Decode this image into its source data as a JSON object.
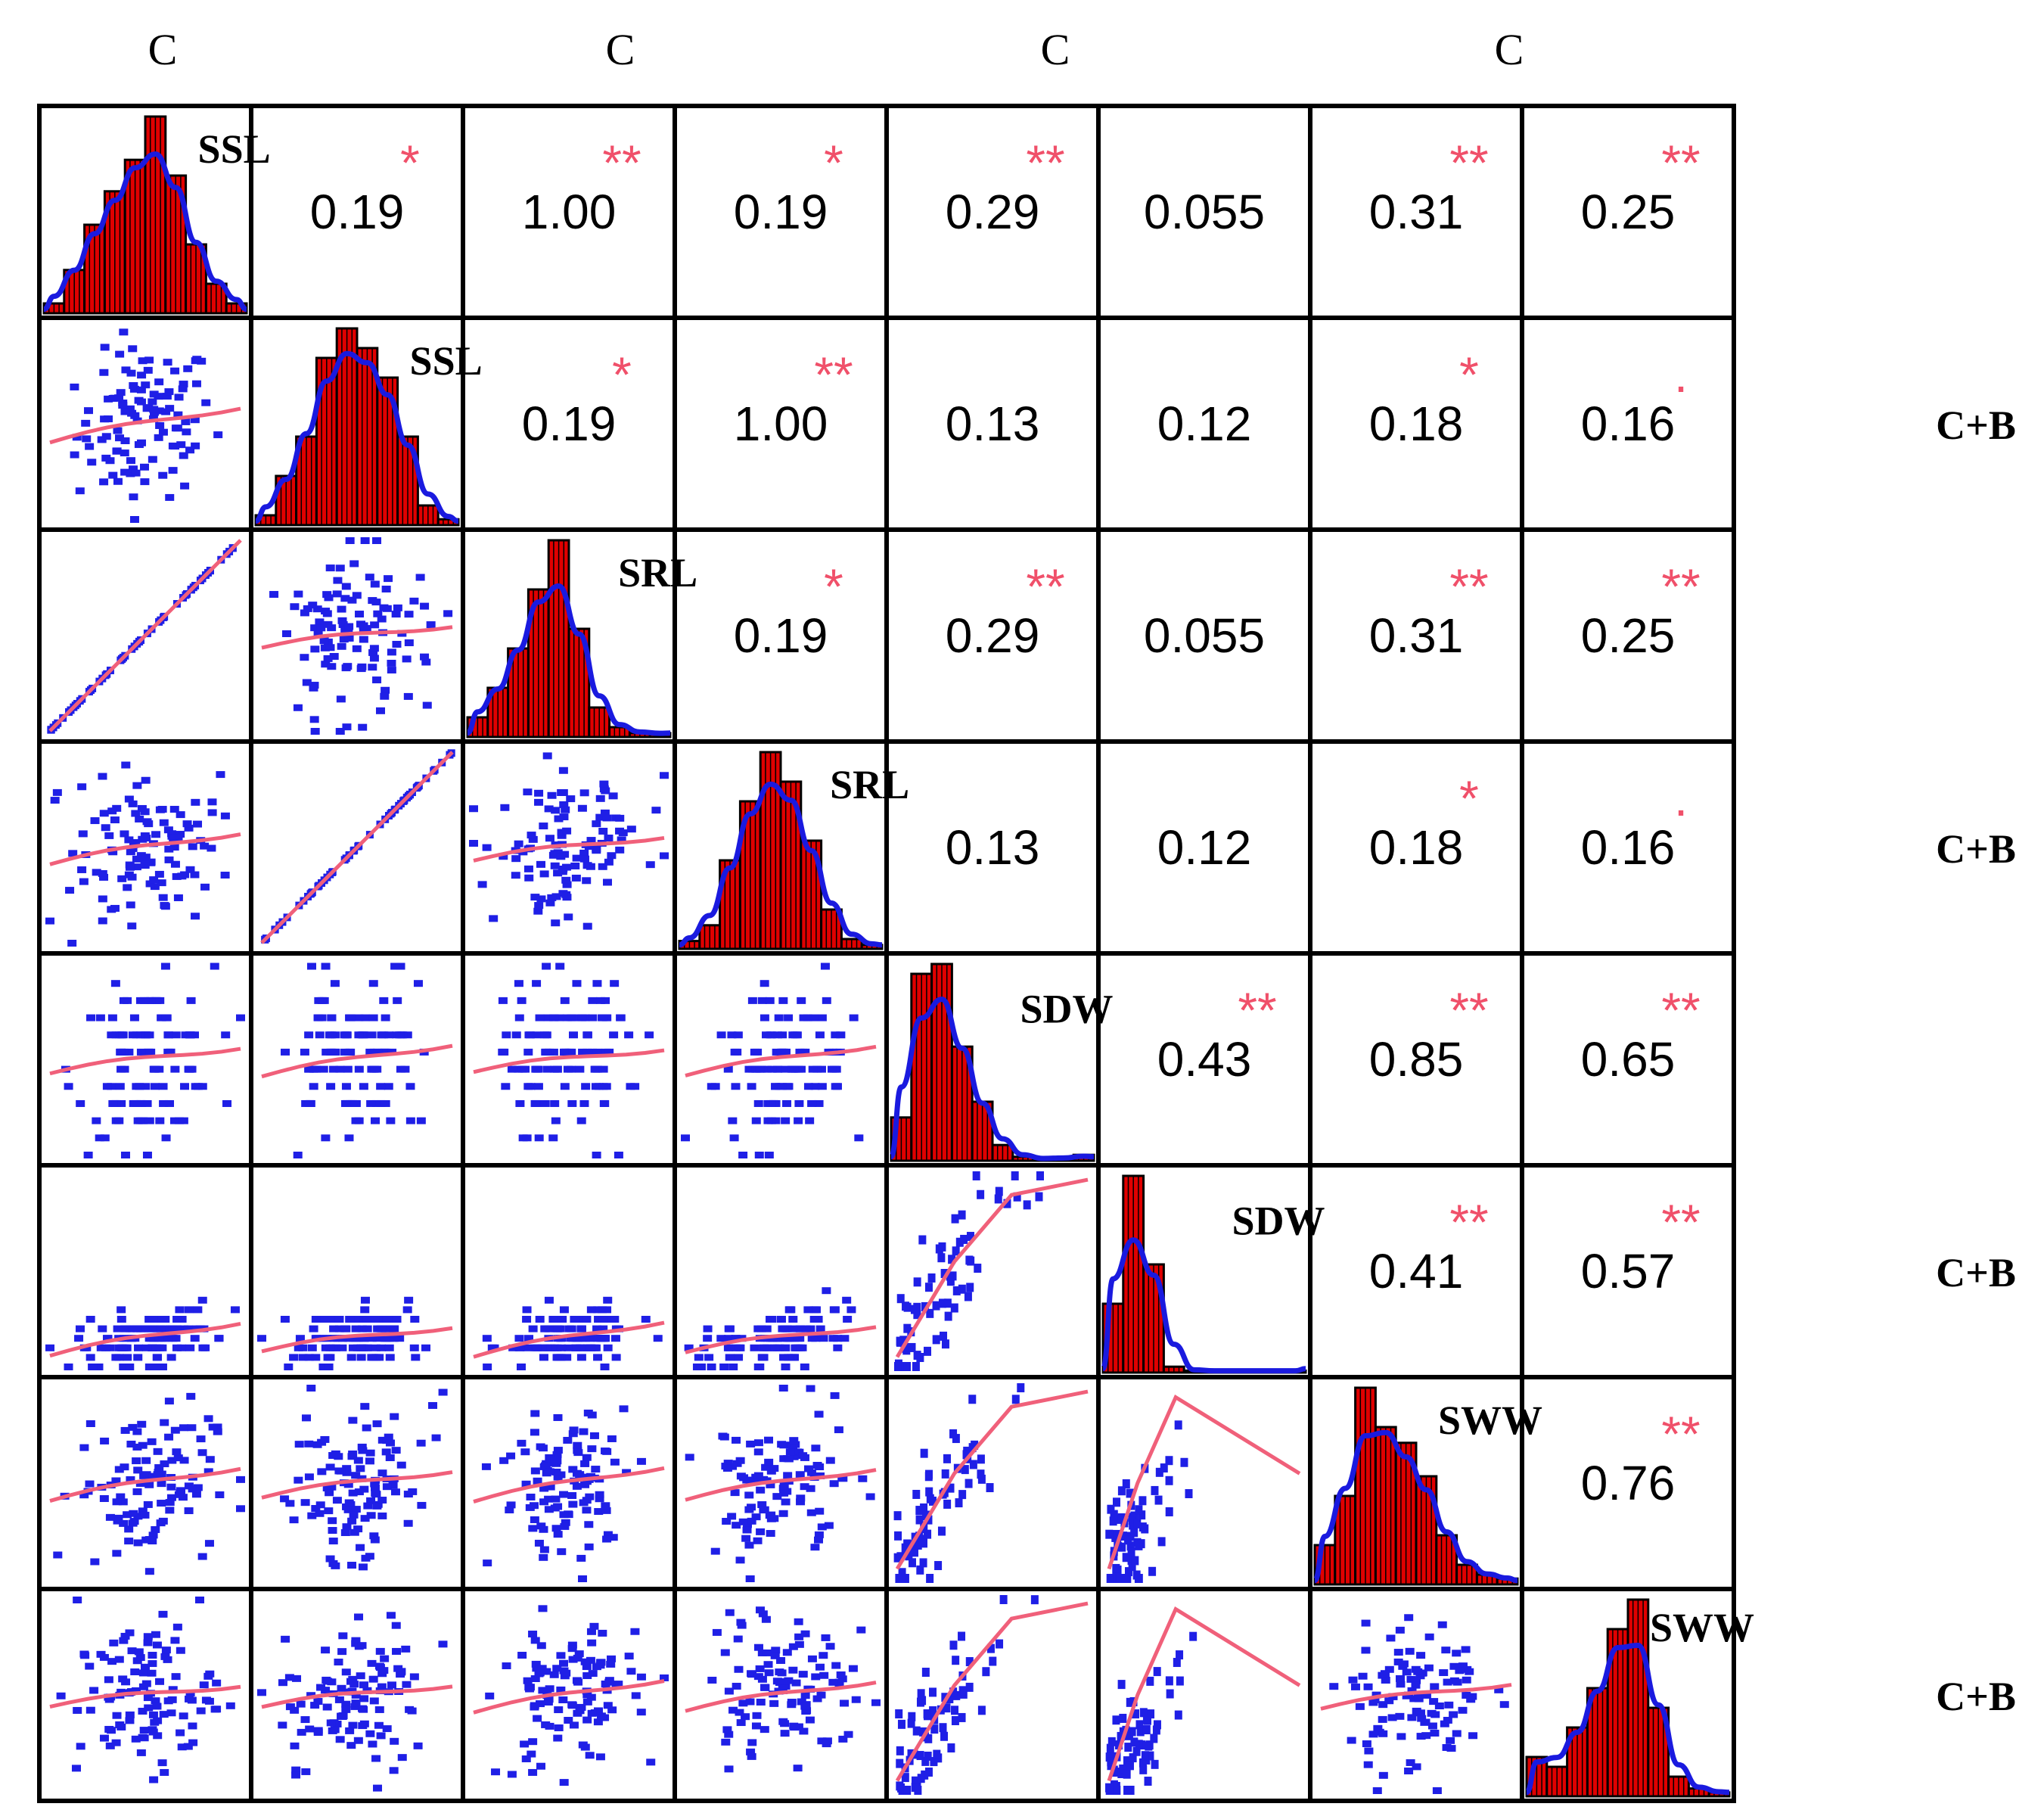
{
  "chart_data": {
    "type": "scatter-matrix",
    "title": "",
    "top_labels": [
      "C",
      "C",
      "C",
      "C"
    ],
    "right_labels": [
      "C+B",
      "C+B",
      "C+B",
      "C+B"
    ],
    "variables": [
      "SSL",
      "SSL",
      "SRL",
      "SRL",
      "SDW",
      "SDW",
      "SWW",
      "SWW"
    ],
    "groups": [
      "C",
      "C+B",
      "C",
      "C+B",
      "C",
      "C+B",
      "C",
      "C+B"
    ],
    "correlations": [
      {
        "row": 0,
        "col": 1,
        "value": "0.19",
        "stars": "*"
      },
      {
        "row": 0,
        "col": 2,
        "value": "1.00",
        "stars": "**"
      },
      {
        "row": 0,
        "col": 3,
        "value": "0.19",
        "stars": "*"
      },
      {
        "row": 0,
        "col": 4,
        "value": "0.29",
        "stars": "**"
      },
      {
        "row": 0,
        "col": 5,
        "value": "0.055",
        "stars": ""
      },
      {
        "row": 0,
        "col": 6,
        "value": "0.31",
        "stars": "**"
      },
      {
        "row": 0,
        "col": 7,
        "value": "0.25",
        "stars": "**"
      },
      {
        "row": 1,
        "col": 2,
        "value": "0.19",
        "stars": "*"
      },
      {
        "row": 1,
        "col": 3,
        "value": "1.00",
        "stars": "**"
      },
      {
        "row": 1,
        "col": 4,
        "value": "0.13",
        "stars": ""
      },
      {
        "row": 1,
        "col": 5,
        "value": "0.12",
        "stars": ""
      },
      {
        "row": 1,
        "col": 6,
        "value": "0.18",
        "stars": "*"
      },
      {
        "row": 1,
        "col": 7,
        "value": "0.16",
        "stars": "."
      },
      {
        "row": 2,
        "col": 3,
        "value": "0.19",
        "stars": "*"
      },
      {
        "row": 2,
        "col": 4,
        "value": "0.29",
        "stars": "**"
      },
      {
        "row": 2,
        "col": 5,
        "value": "0.055",
        "stars": ""
      },
      {
        "row": 2,
        "col": 6,
        "value": "0.31",
        "stars": "**"
      },
      {
        "row": 2,
        "col": 7,
        "value": "0.25",
        "stars": "**"
      },
      {
        "row": 3,
        "col": 4,
        "value": "0.13",
        "stars": ""
      },
      {
        "row": 3,
        "col": 5,
        "value": "0.12",
        "stars": ""
      },
      {
        "row": 3,
        "col": 6,
        "value": "0.18",
        "stars": "*"
      },
      {
        "row": 3,
        "col": 7,
        "value": "0.16",
        "stars": "."
      },
      {
        "row": 4,
        "col": 5,
        "value": "0.43",
        "stars": "**"
      },
      {
        "row": 4,
        "col": 6,
        "value": "0.85",
        "stars": "**"
      },
      {
        "row": 4,
        "col": 7,
        "value": "0.65",
        "stars": "**"
      },
      {
        "row": 5,
        "col": 6,
        "value": "0.41",
        "stars": "**"
      },
      {
        "row": 5,
        "col": 7,
        "value": "0.57",
        "stars": "**"
      },
      {
        "row": 6,
        "col": 7,
        "value": "0.76",
        "stars": "**"
      }
    ],
    "colors": {
      "histogram_bar": "#e00000",
      "density_line": "#1a1adf",
      "scatter_point": "#1f1fe6",
      "smooth_line": "#f0607a",
      "significance_star": "#f0506a",
      "text": "#000000"
    }
  }
}
